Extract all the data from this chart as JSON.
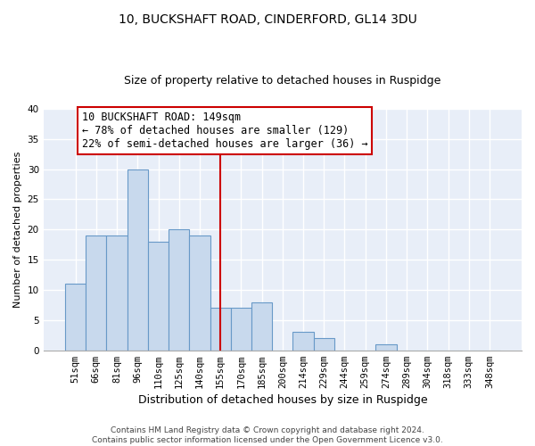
{
  "title": "10, BUCKSHAFT ROAD, CINDERFORD, GL14 3DU",
  "subtitle": "Size of property relative to detached houses in Ruspidge",
  "xlabel": "Distribution of detached houses by size in Ruspidge",
  "ylabel": "Number of detached properties",
  "bar_labels": [
    "51sqm",
    "66sqm",
    "81sqm",
    "96sqm",
    "110sqm",
    "125sqm",
    "140sqm",
    "155sqm",
    "170sqm",
    "185sqm",
    "200sqm",
    "214sqm",
    "229sqm",
    "244sqm",
    "259sqm",
    "274sqm",
    "289sqm",
    "304sqm",
    "318sqm",
    "333sqm",
    "348sqm"
  ],
  "bar_heights": [
    11,
    19,
    19,
    30,
    18,
    20,
    19,
    7,
    7,
    8,
    0,
    3,
    2,
    0,
    0,
    1,
    0,
    0,
    0,
    0,
    0
  ],
  "bar_color": "#c8d9ed",
  "bar_edge_color": "#6899c8",
  "vline_color": "#cc0000",
  "annotation_line1": "10 BUCKSHAFT ROAD: 149sqm",
  "annotation_line2": "← 78% of detached houses are smaller (129)",
  "annotation_line3": "22% of semi-detached houses are larger (36) →",
  "annotation_box_color": "#ffffff",
  "annotation_box_edge_color": "#cc0000",
  "ylim": [
    0,
    40
  ],
  "yticks": [
    0,
    5,
    10,
    15,
    20,
    25,
    30,
    35,
    40
  ],
  "footer_text": "Contains HM Land Registry data © Crown copyright and database right 2024.\nContains public sector information licensed under the Open Government Licence v3.0.",
  "bg_color": "#ffffff",
  "plot_bg_color": "#e8eef8",
  "grid_color": "#ffffff",
  "title_fontsize": 10,
  "subtitle_fontsize": 9,
  "xlabel_fontsize": 9,
  "ylabel_fontsize": 8,
  "tick_fontsize": 7.5,
  "annotation_fontsize": 8.5,
  "footer_fontsize": 6.5
}
